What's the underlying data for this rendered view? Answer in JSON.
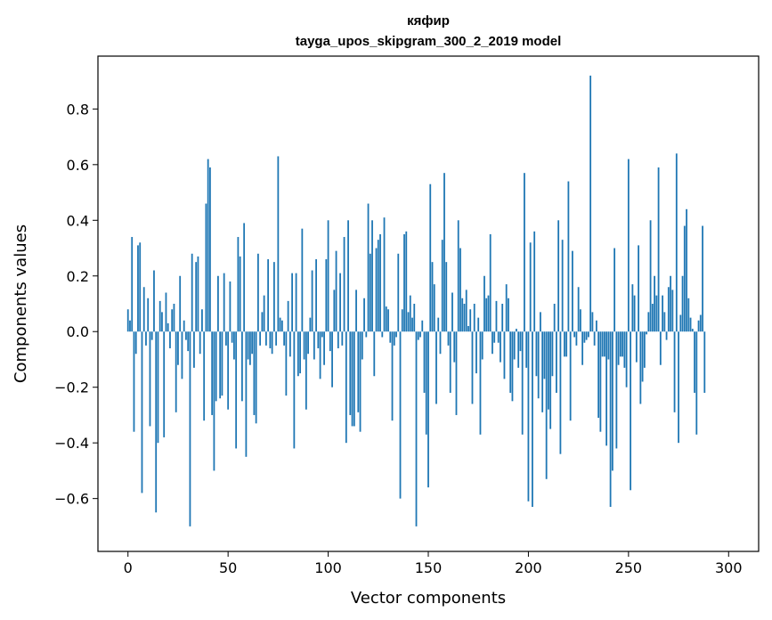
{
  "chart_data": {
    "type": "bar",
    "title": "кяфир",
    "subtitle": "tayga_upos_skipgram_300_2_2019 model",
    "xlabel": "Vector components",
    "ylabel": "Components values",
    "xlim": [
      -15,
      315
    ],
    "ylim": [
      -0.79,
      0.99
    ],
    "xticks": [
      0,
      50,
      100,
      150,
      200,
      250,
      300
    ],
    "xtick_labels": [
      "0",
      "50",
      "100",
      "150",
      "200",
      "250",
      "300"
    ],
    "yticks": [
      -0.6,
      -0.4,
      -0.2,
      0.0,
      0.2,
      0.4,
      0.6,
      0.8
    ],
    "ytick_labels": [
      "−0.6",
      "−0.4",
      "−0.2",
      "0.0",
      "0.2",
      "0.4",
      "0.6",
      "0.8"
    ],
    "bar_color": "#1f77b4",
    "grid": false,
    "legend": "none",
    "values": [
      0.08,
      0.04,
      0.34,
      -0.36,
      -0.08,
      0.31,
      0.32,
      -0.58,
      0.16,
      -0.05,
      0.12,
      -0.34,
      -0.03,
      0.22,
      -0.65,
      -0.4,
      0.11,
      0.07,
      -0.38,
      0.14,
      0.03,
      -0.06,
      0.08,
      0.1,
      -0.29,
      -0.12,
      0.2,
      -0.17,
      0.04,
      -0.03,
      -0.07,
      -0.7,
      0.28,
      -0.13,
      0.25,
      0.27,
      -0.08,
      0.08,
      -0.32,
      0.46,
      0.62,
      0.59,
      -0.3,
      -0.5,
      -0.25,
      0.2,
      -0.24,
      -0.23,
      0.21,
      -0.05,
      -0.28,
      0.18,
      -0.04,
      -0.1,
      -0.42,
      0.34,
      0.27,
      -0.25,
      0.39,
      -0.45,
      -0.1,
      -0.12,
      -0.08,
      -0.3,
      -0.33,
      0.28,
      -0.05,
      0.07,
      0.13,
      -0.05,
      0.26,
      -0.06,
      -0.08,
      0.25,
      -0.05,
      0.63,
      0.05,
      0.04,
      -0.05,
      -0.23,
      0.11,
      -0.09,
      0.21,
      -0.42,
      0.21,
      -0.16,
      -0.15,
      0.37,
      -0.1,
      -0.28,
      -0.08,
      0.05,
      0.22,
      -0.1,
      0.26,
      -0.06,
      -0.17,
      -0.02,
      -0.12,
      0.26,
      0.4,
      -0.07,
      -0.2,
      0.15,
      0.29,
      -0.06,
      0.21,
      -0.05,
      0.34,
      -0.4,
      0.4,
      -0.3,
      -0.34,
      -0.34,
      0.15,
      -0.29,
      -0.36,
      -0.1,
      0.12,
      -0.02,
      0.46,
      0.28,
      0.4,
      -0.16,
      0.3,
      0.33,
      0.35,
      -0.02,
      0.41,
      0.09,
      0.08,
      -0.04,
      -0.32,
      -0.05,
      -0.02,
      0.28,
      -0.6,
      0.08,
      0.35,
      0.36,
      0.07,
      0.13,
      0.05,
      0.1,
      -0.7,
      -0.03,
      -0.02,
      0.04,
      -0.22,
      -0.37,
      -0.56,
      0.53,
      0.25,
      0.17,
      -0.26,
      0.05,
      -0.08,
      0.33,
      0.57,
      0.25,
      -0.05,
      -0.22,
      0.14,
      -0.11,
      -0.3,
      0.4,
      0.3,
      0.12,
      0.1,
      0.15,
      0.02,
      0.08,
      -0.26,
      0.1,
      -0.15,
      0.05,
      -0.37,
      -0.1,
      0.2,
      0.12,
      0.13,
      0.35,
      -0.08,
      -0.04,
      0.11,
      -0.04,
      -0.11,
      0.1,
      -0.17,
      0.17,
      0.12,
      -0.22,
      -0.25,
      -0.1,
      0.01,
      -0.13,
      -0.07,
      -0.37,
      0.57,
      -0.13,
      -0.61,
      0.32,
      -0.63,
      0.36,
      -0.16,
      -0.24,
      0.07,
      -0.29,
      -0.17,
      -0.53,
      -0.28,
      -0.35,
      -0.16,
      0.1,
      -0.22,
      0.4,
      -0.44,
      0.33,
      -0.09,
      -0.09,
      0.54,
      -0.32,
      0.29,
      -0.02,
      -0.05,
      0.16,
      0.08,
      -0.12,
      -0.04,
      -0.03,
      -0.02,
      0.92,
      0.07,
      -0.05,
      0.04,
      -0.31,
      -0.36,
      -0.09,
      -0.09,
      -0.41,
      -0.1,
      -0.63,
      -0.5,
      0.3,
      -0.42,
      -0.12,
      -0.09,
      -0.09,
      -0.13,
      -0.2,
      0.62,
      -0.57,
      0.17,
      0.13,
      -0.11,
      0.31,
      -0.26,
      -0.18,
      -0.13,
      -0.01,
      0.07,
      0.4,
      0.1,
      0.2,
      0.13,
      0.59,
      -0.12,
      0.13,
      0.07,
      -0.03,
      0.16,
      0.2,
      0.15,
      -0.29,
      0.64,
      -0.4,
      0.06,
      0.2,
      0.38,
      0.44,
      0.12,
      0.05,
      0.01,
      -0.22,
      -0.37,
      0.04,
      0.06,
      0.38,
      -0.22
    ]
  }
}
